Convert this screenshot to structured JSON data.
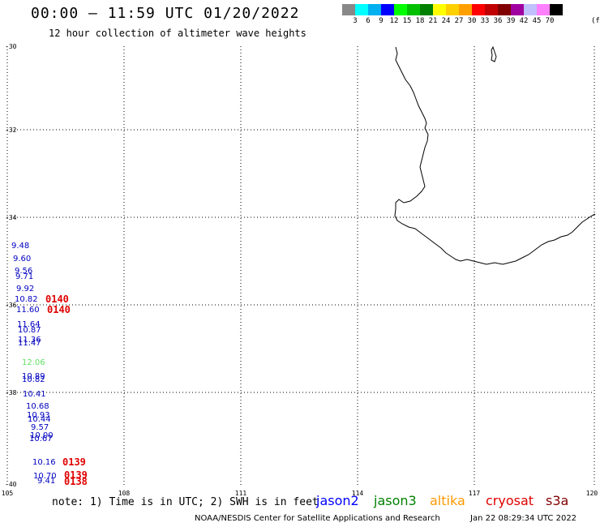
{
  "header": {
    "title": "00:00 – 11:59 UTC 01/20/2022",
    "subtitle": "12 hour collection of altimeter wave heights"
  },
  "color_scale": {
    "colors": [
      "#888888",
      "#00ffff",
      "#00b0f0",
      "#0000ff",
      "#00ff00",
      "#00c000",
      "#008000",
      "#ffff00",
      "#ffd000",
      "#ffa000",
      "#ff0000",
      "#c00000",
      "#800000",
      "#a000a0",
      "#c0c0ff",
      "#ff80ff",
      "#000000"
    ],
    "labels": [
      "3",
      "6",
      "9",
      "12",
      "15",
      "18",
      "21",
      "24",
      "27",
      "30",
      "33",
      "36",
      "39",
      "42",
      "45",
      "70"
    ],
    "unit": "(ft)"
  },
  "axes": {
    "lat_labels": [
      "-30",
      "-32",
      "-34",
      "-36",
      "-38",
      "-40"
    ],
    "lon_labels": [
      "105",
      "108",
      "111",
      "114",
      "117",
      "120"
    ]
  },
  "observations": [
    {
      "text": "9.48",
      "color": "#0000c0"
    },
    {
      "text": "9.60",
      "color": "#0000c0"
    },
    {
      "text": "9.56",
      "color": "#0000c0"
    },
    {
      "text": "9.71",
      "color": "#0000c0"
    },
    {
      "text": "9.92",
      "color": "#0000c0"
    },
    {
      "text": "10.82",
      "color": "#0000c0"
    },
    {
      "text": "11.60",
      "color": "#0000c0"
    },
    {
      "text": "11.64",
      "color": "#0000c0"
    },
    {
      "text": "10.87",
      "color": "#0000c0"
    },
    {
      "text": "11.36",
      "color": "#0000c0"
    },
    {
      "text": "11.47",
      "color": "#0000c0"
    },
    {
      "text": "12.06",
      "color": "#60e060"
    },
    {
      "text": "10.89",
      "color": "#0000c0"
    },
    {
      "text": "10.82",
      "color": "#0000c0"
    },
    {
      "text": "10.41",
      "color": "#0000c0"
    },
    {
      "text": "10.68",
      "color": "#0000c0"
    },
    {
      "text": "10.93",
      "color": "#0000c0"
    },
    {
      "text": "10.44",
      "color": "#0000c0"
    },
    {
      "text": "9.57",
      "color": "#0000c0"
    },
    {
      "text": "10.00",
      "color": "#0000c0"
    },
    {
      "text": "10.67",
      "color": "#0000c0"
    },
    {
      "text": "10.16",
      "color": "#0000c0"
    },
    {
      "text": "10.70",
      "color": "#0000c0"
    },
    {
      "text": "9.41",
      "color": "#0000c0"
    }
  ],
  "pass_times": [
    "0140",
    "0140",
    "0139",
    "0139",
    "0138"
  ],
  "note": "note: 1) Time is in UTC; 2) SWH is in feet",
  "satellites": [
    {
      "name": "jason2",
      "color": "#0000ff"
    },
    {
      "name": "jason3",
      "color": "#008000"
    },
    {
      "name": "altika",
      "color": "#ff9900"
    },
    {
      "name": "cryosat",
      "color": "#e00000"
    },
    {
      "name": "s3a",
      "color": "#800000"
    }
  ],
  "footer": {
    "agency": "NOAA/NESDIS Center for Satellite Applications and Research",
    "timestamp": "Jan 22 08:29:34 UTC 2022"
  }
}
